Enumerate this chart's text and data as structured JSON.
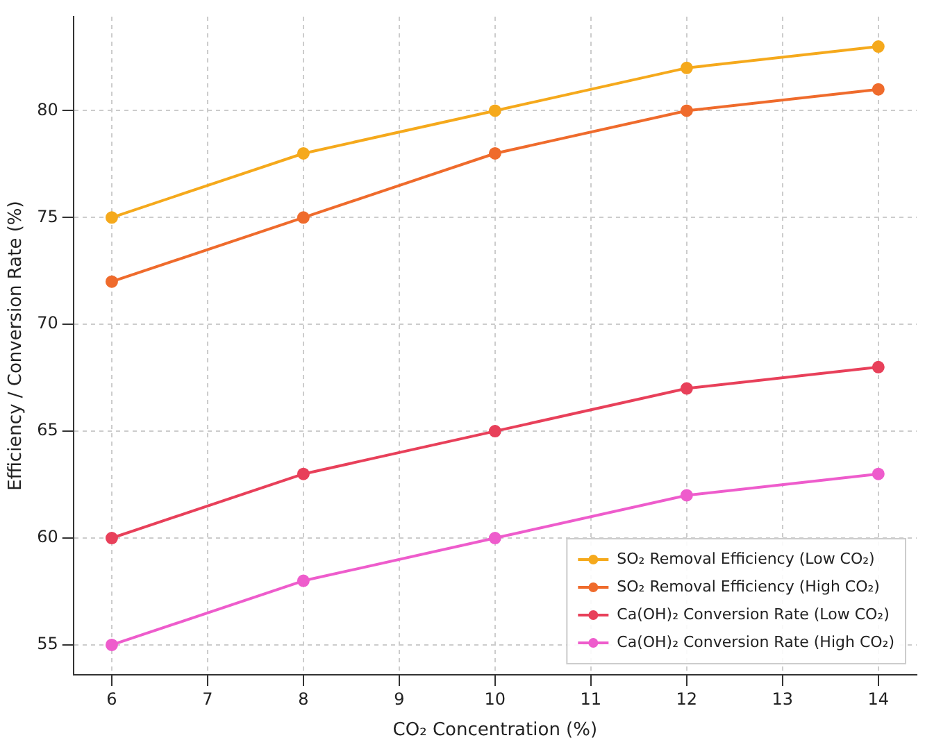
{
  "chart_data": {
    "type": "line",
    "xlabel": "CO₂ Concentration (%)",
    "ylabel": "Efficiency / Conversion Rate (%)",
    "x": [
      6,
      8,
      10,
      12,
      14
    ],
    "series": [
      {
        "name": "SO₂ Removal Efficiency (Low CO₂)",
        "color": "#f5a91c",
        "values": [
          75,
          78,
          80,
          82,
          83
        ]
      },
      {
        "name": "SO₂ Removal Efficiency (High CO₂)",
        "color": "#ef6b2c",
        "values": [
          72,
          75,
          78,
          80,
          81
        ]
      },
      {
        "name": "Ca(OH)₂ Conversion Rate (Low CO₂)",
        "color": "#e8405a",
        "values": [
          60,
          63,
          65,
          67,
          68
        ]
      },
      {
        "name": "Ca(OH)₂ Conversion Rate (High CO₂)",
        "color": "#ee5ccc",
        "values": [
          55,
          58,
          60,
          62,
          63
        ]
      }
    ],
    "xlim": [
      5.6,
      14.4
    ],
    "xticks": [
      6,
      7,
      8,
      9,
      10,
      11,
      12,
      13,
      14
    ],
    "ylim": [
      53.6,
      84.4
    ],
    "yticks": [
      55,
      60,
      65,
      70,
      75,
      80
    ],
    "grid": true,
    "legend": "bottom right",
    "marker": "circle",
    "line_style": "solid"
  }
}
